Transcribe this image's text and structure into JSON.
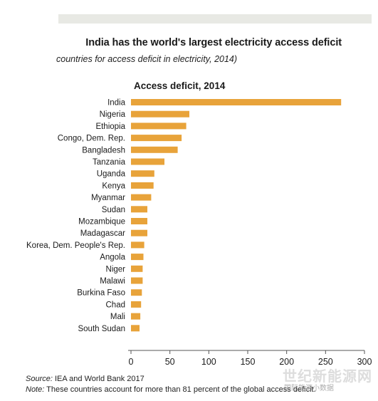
{
  "header": {
    "title": "India has the world's largest electricity access deficit",
    "subtitle": "countries for access deficit in electricity, 2014)"
  },
  "chart_data": {
    "type": "bar",
    "orientation": "horizontal",
    "title": "Access deficit, 2014",
    "xlabel": "",
    "ylabel": "",
    "xlim": [
      0,
      300
    ],
    "xticks": [
      0,
      50,
      100,
      150,
      200,
      250,
      300
    ],
    "grid": false,
    "bar_color": "#E8A33A",
    "categories": [
      "India",
      "Nigeria",
      "Ethiopia",
      "Congo, Dem. Rep.",
      "Bangladesh",
      "Tanzania",
      "Uganda",
      "Kenya",
      "Myanmar",
      "Sudan",
      "Mozambique",
      "Madagascar",
      "Korea, Dem. People's Rep.",
      "Angola",
      "Niger",
      "Malawi",
      "Burkina Faso",
      "Chad",
      "Mali",
      "South Sudan"
    ],
    "values": [
      270,
      75,
      71,
      65,
      60,
      43,
      30,
      29,
      26,
      21,
      21,
      21,
      17,
      16,
      15,
      15,
      14,
      13,
      12,
      11
    ]
  },
  "footer": {
    "source_label": "Source:",
    "source_text": " IEA and World Bank 2017",
    "note_label": "Note:",
    "note_text": " These countries account for more than 81 percent of the global access deficit."
  },
  "watermark": {
    "main": "世纪新能源网",
    "sub": "国际能源小数据"
  }
}
